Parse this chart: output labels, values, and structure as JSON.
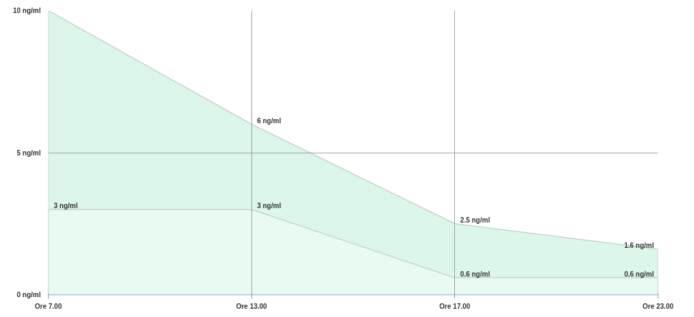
{
  "chart_data": {
    "type": "area",
    "categories": [
      "Ore 7.00",
      "Ore 13.00",
      "Ore 17.00",
      "Ore 23.00"
    ],
    "series": [
      {
        "color": "#d6f5e6",
        "values": [
          10,
          6,
          2.5,
          1.6
        ],
        "value_labels": [
          null,
          "6 ng/ml",
          "2.5 ng/ml",
          "1.6 ng/ml"
        ]
      },
      {
        "color": "#ebfaf3",
        "values": [
          3,
          3,
          0.6,
          0.6
        ],
        "value_labels": [
          "3 ng/ml",
          "3 ng/ml",
          "0.6 ng/ml",
          "0.6 ng/ml"
        ]
      }
    ],
    "ylim": [
      0,
      10
    ],
    "yticks": [
      {
        "value": 0,
        "label": "0 ng/ml"
      },
      {
        "value": 5,
        "label": "5 ng/ml"
      },
      {
        "value": 10,
        "label": "10 ng/ml"
      }
    ],
    "grid": true
  }
}
